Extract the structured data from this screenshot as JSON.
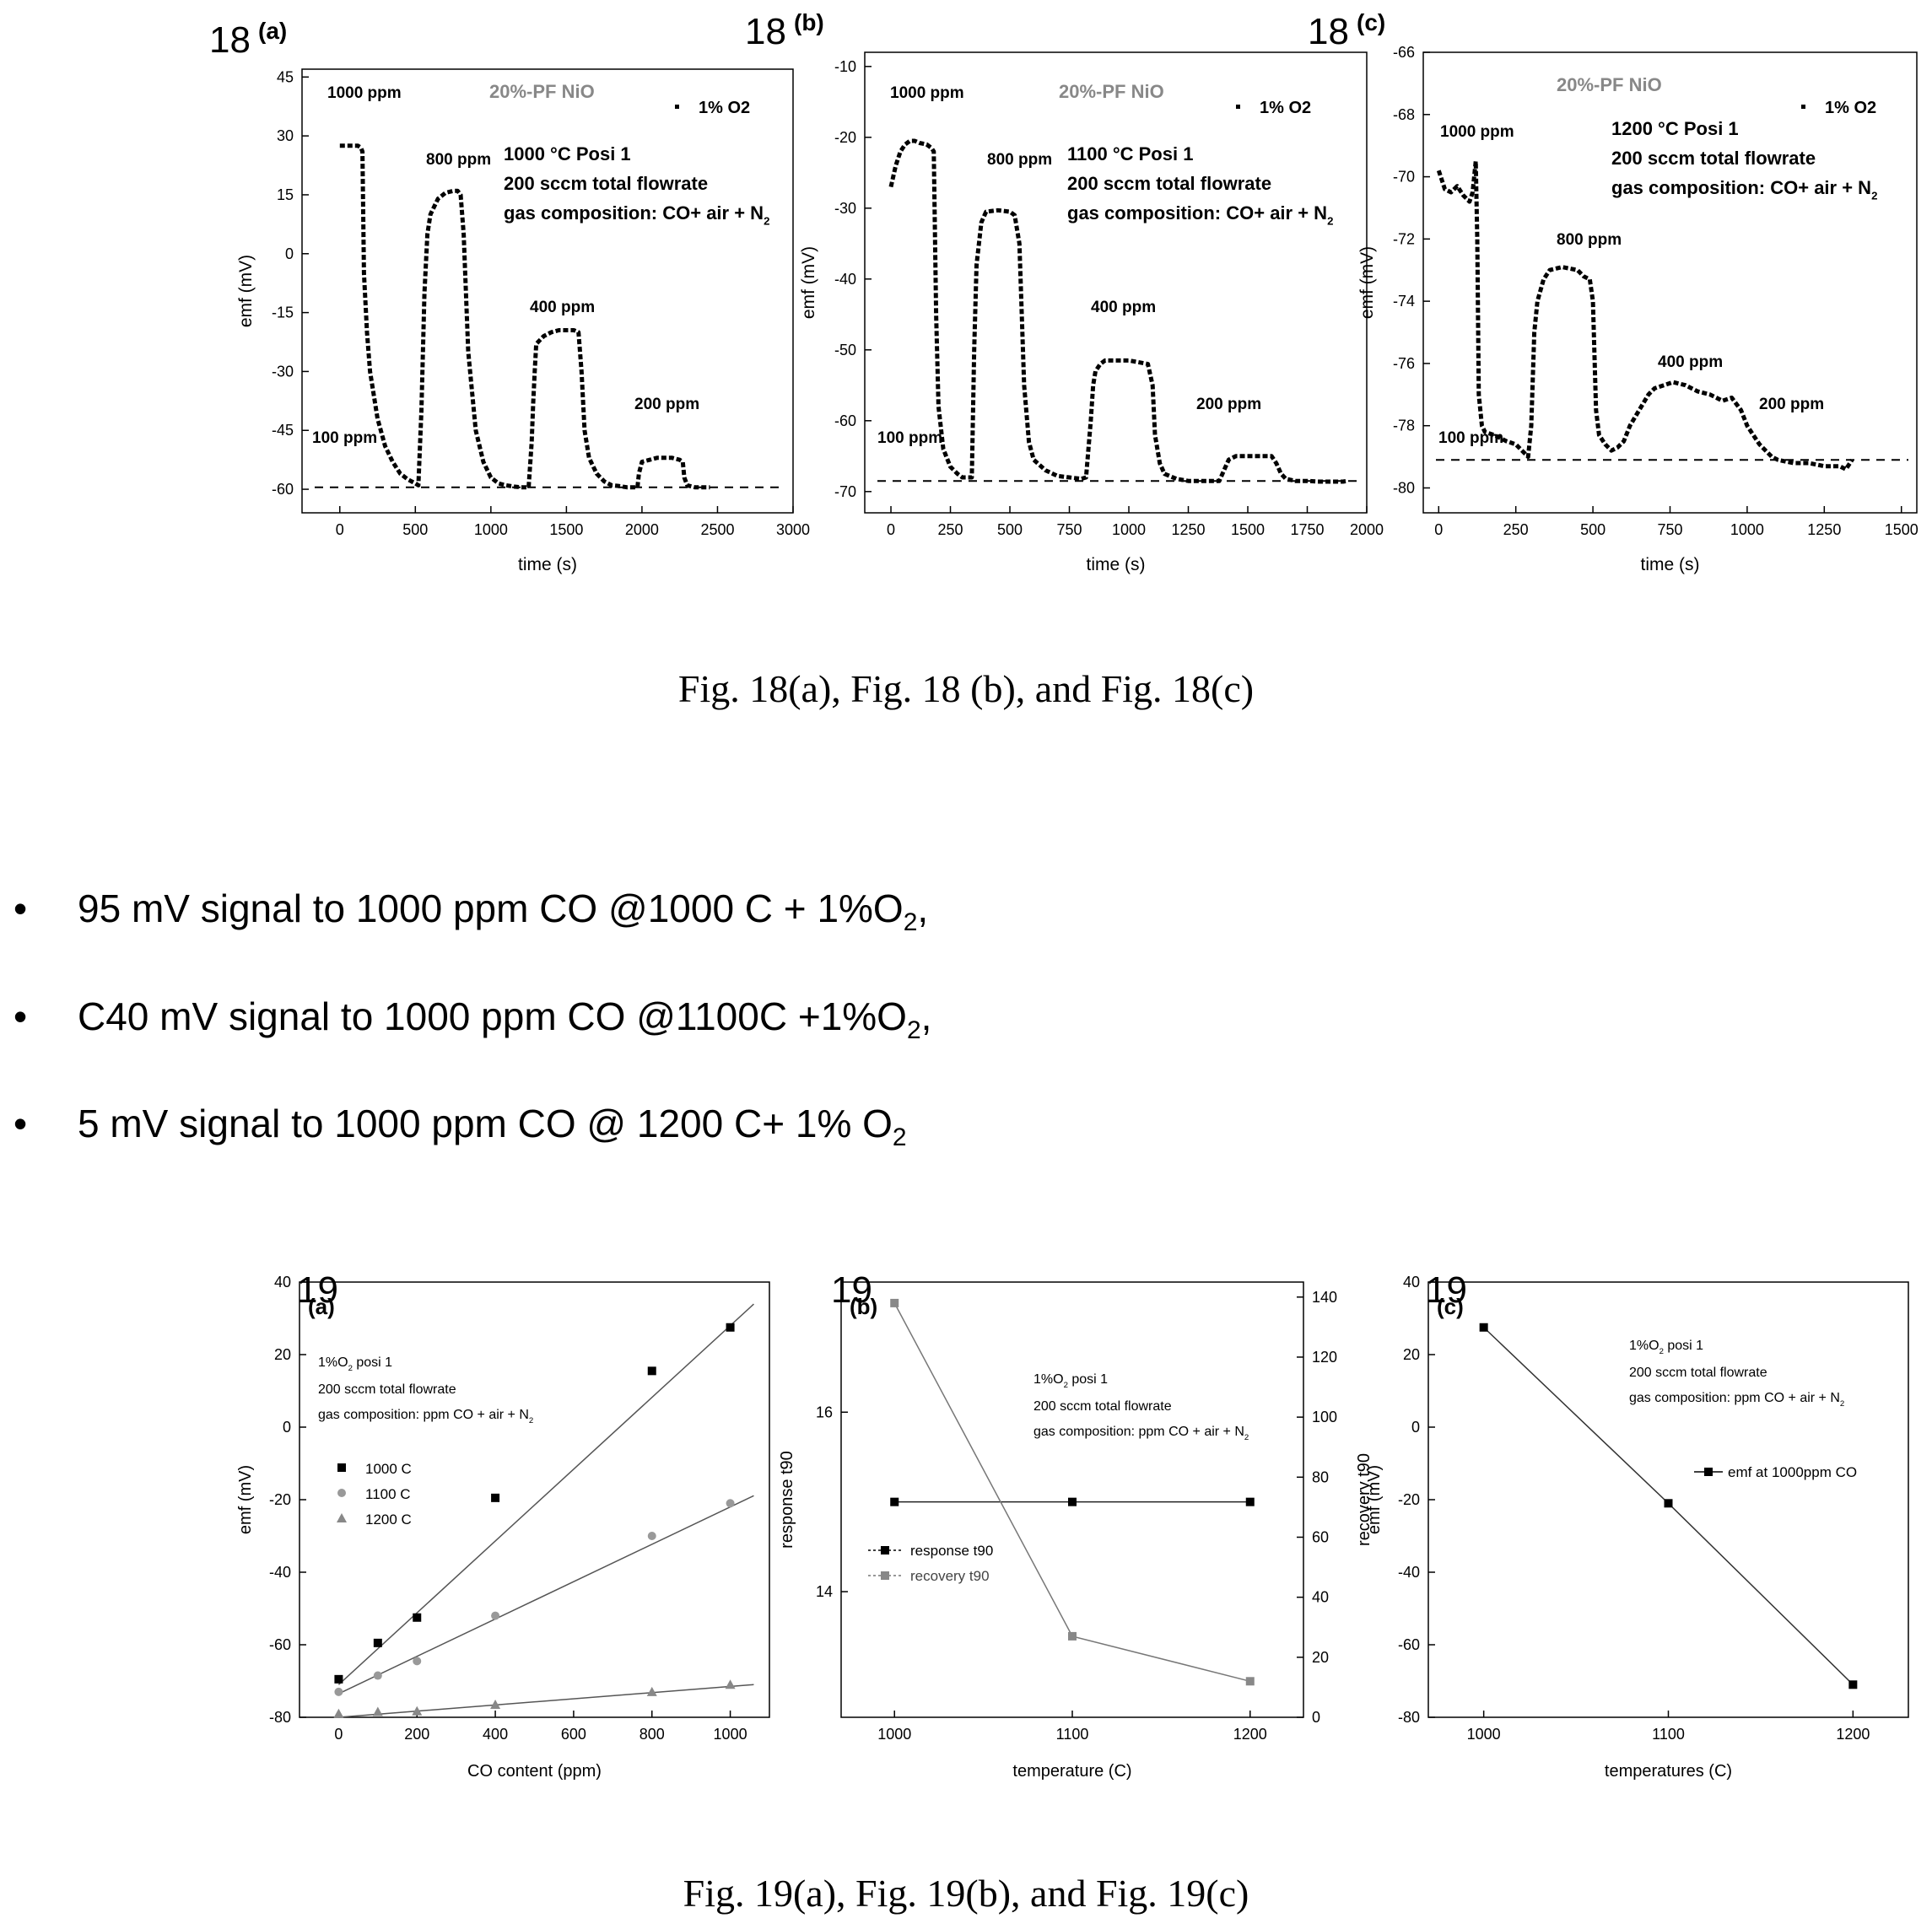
{
  "figure18": {
    "caption": "Fig. 18(a), Fig. 18 (b), and Fig. 18(c)",
    "panels": [
      {
        "label_num": "18",
        "label_letter": "(a)",
        "title": "20%-PF NiO",
        "legend": "1% O2",
        "cond1": "1000 °C   Posi 1",
        "cond2": "200 sccm total flowrate",
        "cond3": "gas composition: CO+ air + N",
        "cond3_sub": "2",
        "ylabel": "emf (mV)",
        "xlabel": "time (s)",
        "yticks": [
          "45",
          "30",
          "15",
          "0",
          "-15",
          "-30",
          "-45",
          "-60"
        ],
        "xticks": [
          "0",
          "500",
          "1000",
          "1500",
          "2000",
          "2500",
          "3000"
        ],
        "annotations": [
          "1000 ppm",
          "800 ppm",
          "400 ppm",
          "200 ppm",
          "100 ppm"
        ]
      },
      {
        "label_num": "18",
        "label_letter": "(b)",
        "title": "20%-PF NiO",
        "legend": "1% O2",
        "cond1": "1100 °C   Posi 1",
        "cond2": "200 sccm total flowrate",
        "cond3": "gas composition: CO+ air + N",
        "cond3_sub": "2",
        "ylabel": "emf (mV)",
        "xlabel": "time (s)",
        "yticks": [
          "-10",
          "-20",
          "-30",
          "-40",
          "-50",
          "-60",
          "-70"
        ],
        "xticks": [
          "0",
          "250",
          "500",
          "750",
          "1000",
          "1250",
          "1500",
          "1750",
          "2000"
        ],
        "annotations": [
          "1000 ppm",
          "800 ppm",
          "400 ppm",
          "200 ppm",
          "100 ppm"
        ]
      },
      {
        "label_num": "18",
        "label_letter": "(c)",
        "title": "20%-PF NiO",
        "legend": "1% O2",
        "cond1": "1200 °C   Posi 1",
        "cond2": "200 sccm total flowrate",
        "cond3": "gas composition: CO+ air + N",
        "cond3_sub": "2",
        "ylabel": "emf (mV)",
        "xlabel": "time (s)",
        "yticks": [
          "-66",
          "-68",
          "-70",
          "-72",
          "-74",
          "-76",
          "-78",
          "-80"
        ],
        "xticks": [
          "0",
          "250",
          "500",
          "750",
          "1000",
          "1250",
          "1500"
        ],
        "annotations": [
          "1000 ppm",
          "800 ppm",
          "400 ppm",
          "200 ppm",
          "100 ppm"
        ]
      }
    ]
  },
  "bullets": [
    {
      "text": "95 mV signal to 1000 ppm CO @1000 C + 1%O",
      "sub": "2",
      "tail": ","
    },
    {
      "text": "C40 mV signal to 1000 ppm CO @1100C +1%O",
      "sub": "2",
      "tail": ","
    },
    {
      "text": "5 mV signal to 1000 ppm CO @ 1200 C+ 1% O",
      "sub": "2",
      "tail": ""
    }
  ],
  "bullet_symbol": "•",
  "figure19": {
    "caption": "Fig. 19(a), Fig. 19(b), and Fig. 19(c)",
    "panels": [
      {
        "label_num": "19",
        "label_letter": "(a)",
        "ylabel": "emf (mV)",
        "xlabel": "CO content (ppm)",
        "yticks": [
          "40",
          "20",
          "0",
          "-20",
          "-40",
          "-60",
          "-80"
        ],
        "xticks": [
          "0",
          "200",
          "400",
          "600",
          "800",
          "1000"
        ],
        "cond1": "1%O",
        "cond1_sub": "2",
        "cond1_tail": " posi 1",
        "cond2": "200 sccm total flowrate",
        "cond3": "gas composition: ppm CO + air + N",
        "cond3_sub": "2",
        "legend": [
          "1000 C",
          "1100 C",
          "1200 C"
        ]
      },
      {
        "label_num": "19",
        "label_letter": "(b)",
        "ylabel": "response t90",
        "y2label": "recovery t90",
        "xlabel": "temperature (C)",
        "yticks": [
          "16",
          "14"
        ],
        "y2ticks": [
          "140",
          "120",
          "100",
          "80",
          "60",
          "40",
          "20",
          "0"
        ],
        "xticks": [
          "1000",
          "1100",
          "1200"
        ],
        "cond1": "1%O",
        "cond1_sub": "2",
        "cond1_tail": " posi 1",
        "cond2": "200 sccm total flowrate",
        "cond3": "gas composition: ppm CO + air + N",
        "cond3_sub": "2",
        "legend": [
          "response t90",
          "recovery t90"
        ]
      },
      {
        "label_num": "19",
        "label_letter": "(c)",
        "ylabel": "emf (mV)",
        "xlabel": "temperatures (C)",
        "yticks": [
          "40",
          "20",
          "0",
          "-20",
          "-40",
          "-60",
          "-80"
        ],
        "xticks": [
          "1000",
          "1100",
          "1200"
        ],
        "cond1": "1%O",
        "cond1_sub": "2",
        "cond1_tail": " posi 1",
        "cond2": "200 sccm total flowrate",
        "cond3": "gas composition: ppm CO + air + N",
        "cond3_sub": "2",
        "legend": [
          "emf at 1000ppm CO"
        ]
      }
    ]
  },
  "chart_data": [
    {
      "type": "line",
      "panel": "18(a)",
      "xlabel": "time (s)",
      "ylabel": "emf (mV)",
      "xlim": [
        -250,
        3000
      ],
      "ylim": [
        -66,
        47
      ],
      "baseline": -59.5,
      "series": [
        {
          "x": [
            0,
            60,
            120,
            140,
            150,
            160,
            180,
            200,
            250,
            300,
            350,
            400,
            450,
            500,
            520,
            540,
            560,
            580,
            600,
            650,
            700,
            750,
            780,
            800,
            820,
            850,
            900,
            950,
            1000,
            1050,
            1100,
            1150,
            1200,
            1230,
            1250,
            1270,
            1280,
            1290,
            1300,
            1350,
            1400,
            1450,
            1500,
            1550,
            1580,
            1600,
            1620,
            1650,
            1700,
            1750,
            1800,
            1850,
            1900,
            1950,
            1970,
            1980,
            2000,
            2050,
            2100,
            2150,
            2200,
            2250,
            2270,
            2280,
            2300,
            2350,
            2400,
            2450
          ],
          "y": [
            27.5,
            27.5,
            27.5,
            27,
            26,
            -5,
            -20,
            -30,
            -42,
            -49,
            -53,
            -56,
            -57.5,
            -58.5,
            -59,
            -40,
            -10,
            5,
            10,
            14,
            15.5,
            16,
            16,
            15,
            5,
            -25,
            -45,
            -53,
            -57,
            -58.5,
            -59,
            -59.3,
            -59.5,
            -59.5,
            -59.5,
            -48,
            -38,
            -30,
            -23,
            -21,
            -20,
            -19.5,
            -19.5,
            -19.5,
            -20,
            -30,
            -45,
            -52,
            -56,
            -58,
            -59,
            -59.2,
            -59.5,
            -59.5,
            -59.5,
            -56,
            -53,
            -52.5,
            -52,
            -52,
            -52,
            -52.5,
            -53,
            -57,
            -59,
            -59.5,
            -59.5,
            -59.5
          ]
        }
      ]
    },
    {
      "type": "line",
      "panel": "18(b)",
      "xlabel": "time (s)",
      "ylabel": "emf (mV)",
      "xlim": [
        -110,
        2000
      ],
      "ylim": [
        -73,
        -8
      ],
      "baseline": -68.5,
      "series": [
        {
          "x": [
            0,
            20,
            40,
            60,
            80,
            100,
            120,
            150,
            170,
            180,
            190,
            200,
            220,
            250,
            280,
            300,
            320,
            340,
            350,
            360,
            380,
            400,
            450,
            500,
            520,
            540,
            560,
            580,
            600,
            650,
            700,
            750,
            800,
            820,
            840,
            850,
            860,
            880,
            900,
            950,
            1000,
            1050,
            1080,
            1100,
            1110,
            1130,
            1150,
            1200,
            1250,
            1300,
            1350,
            1380,
            1400,
            1420,
            1450,
            1500,
            1550,
            1600,
            1620,
            1640,
            1660,
            1700,
            1750,
            1800,
            1850,
            1900,
            1920
          ],
          "y": [
            -27,
            -24,
            -22,
            -21,
            -20.5,
            -20.5,
            -20.8,
            -21,
            -21.5,
            -22,
            -45,
            -58,
            -64,
            -66.5,
            -67.5,
            -68,
            -68,
            -68,
            -50,
            -38,
            -32,
            -30.5,
            -30.3,
            -30.5,
            -31,
            -35,
            -55,
            -63,
            -65.5,
            -67,
            -67.8,
            -68,
            -68.2,
            -68,
            -60,
            -55,
            -53,
            -52,
            -51.5,
            -51.5,
            -51.5,
            -51.8,
            -52,
            -55,
            -62,
            -66,
            -67.5,
            -68.2,
            -68.5,
            -68.5,
            -68.5,
            -68.5,
            -67,
            -65.5,
            -65,
            -65,
            -65,
            -65,
            -66,
            -67.5,
            -68.2,
            -68.5,
            -68.5,
            -68.6,
            -68.6,
            -68.6,
            -68.5
          ]
        }
      ]
    },
    {
      "type": "line",
      "panel": "18(c)",
      "xlabel": "time (s)",
      "ylabel": "emf (mV)",
      "xlim": [
        -50,
        1550
      ],
      "ylim": [
        -80.8,
        -66
      ],
      "baseline": -79.1,
      "series": [
        {
          "x": [
            0,
            20,
            40,
            60,
            80,
            100,
            110,
            120,
            125,
            130,
            140,
            150,
            180,
            200,
            220,
            250,
            270,
            290,
            300,
            310,
            320,
            340,
            360,
            400,
            450,
            470,
            490,
            500,
            510,
            520,
            540,
            560,
            580,
            600,
            620,
            650,
            680,
            700,
            730,
            760,
            800,
            840,
            880,
            920,
            950,
            980,
            1000,
            1020,
            1040,
            1060,
            1080,
            1100,
            1150,
            1200,
            1250,
            1280,
            1300,
            1320,
            1340
          ],
          "y": [
            -69.8,
            -70.4,
            -70.5,
            -70.3,
            -70.6,
            -70.8,
            -70.5,
            -69.5,
            -72,
            -77,
            -78,
            -78.2,
            -78.3,
            -78.4,
            -78.5,
            -78.6,
            -78.8,
            -79,
            -78,
            -75,
            -74,
            -73.3,
            -73,
            -72.9,
            -73,
            -73.2,
            -73.3,
            -74,
            -77.5,
            -78.3,
            -78.6,
            -78.8,
            -78.7,
            -78.5,
            -78,
            -77.5,
            -77,
            -76.8,
            -76.7,
            -76.6,
            -76.7,
            -76.9,
            -77,
            -77.2,
            -77.1,
            -77.5,
            -78,
            -78.3,
            -78.6,
            -78.8,
            -79,
            -79.1,
            -79.2,
            -79.2,
            -79.3,
            -79.3,
            -79.3,
            -79.4,
            -79.1
          ]
        }
      ]
    },
    {
      "type": "scatter",
      "panel": "19(a)",
      "xlabel": "CO content (ppm)",
      "ylabel": "emf (mV)",
      "xlim": [
        -100,
        1100
      ],
      "ylim": [
        -80,
        40
      ],
      "series": [
        {
          "name": "1000 C",
          "x": [
            0,
            100,
            200,
            400,
            800,
            1000
          ],
          "y": [
            -69.5,
            -59.5,
            -52.5,
            -19.5,
            15.5,
            27.5
          ],
          "fit": [
            [
              0,
              -71
            ],
            [
              1000,
              28
            ]
          ]
        },
        {
          "name": "1100 C",
          "x": [
            0,
            100,
            200,
            400,
            800,
            1000
          ],
          "y": [
            -73,
            -68.5,
            -64.5,
            -52,
            -30,
            -21
          ],
          "fit": [
            [
              0,
              -73.5
            ],
            [
              1000,
              -22
            ]
          ]
        },
        {
          "name": "1200 C",
          "x": [
            0,
            100,
            200,
            400,
            800,
            1000
          ],
          "y": [
            -79,
            -78.5,
            -78.3,
            -76.5,
            -73,
            -71
          ],
          "fit": [
            [
              0,
              -80
            ],
            [
              1000,
              -71.5
            ]
          ]
        }
      ]
    },
    {
      "type": "line",
      "panel": "19(b)",
      "xlabel": "temperature (C)",
      "ylabel": "response t90",
      "y2label": "recovery t90",
      "xlim": [
        970,
        1230
      ],
      "ylim": [
        12.6,
        17.45
      ],
      "y2lim": [
        0,
        145
      ],
      "series": [
        {
          "name": "response t90",
          "axis": "left",
          "x": [
            1000,
            1100,
            1200
          ],
          "y": [
            15,
            15,
            15
          ]
        },
        {
          "name": "recovery t90",
          "axis": "right",
          "x": [
            1000,
            1100,
            1200
          ],
          "y": [
            138,
            27,
            12
          ]
        }
      ]
    },
    {
      "type": "line",
      "panel": "19(c)",
      "xlabel": "temperatures (C)",
      "ylabel": "emf (mV)",
      "xlim": [
        970,
        1230
      ],
      "ylim": [
        -80,
        40
      ],
      "series": [
        {
          "name": "emf at 1000ppm CO",
          "x": [
            1000,
            1100,
            1200
          ],
          "y": [
            27.5,
            -21,
            -71
          ]
        }
      ]
    }
  ]
}
